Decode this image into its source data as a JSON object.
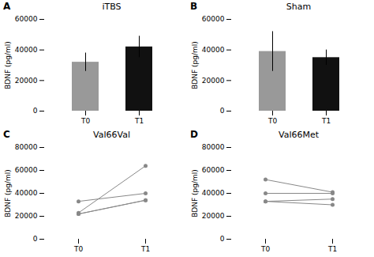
{
  "chart_data": [
    {
      "type": "bar",
      "title": "iTBS",
      "annotations": [
        "A"
      ],
      "categories": [
        "T0",
        "T1"
      ],
      "values": [
        32000,
        42000
      ],
      "errors": [
        6000,
        7000
      ],
      "colors": [
        "#999999",
        "#111111"
      ],
      "ylim": [
        0,
        60000
      ],
      "yticks": [
        0,
        20000,
        40000,
        60000
      ],
      "ylabel": "BDNF (pg/ml)"
    },
    {
      "type": "bar",
      "title": "Sham",
      "annotations": [
        "B"
      ],
      "categories": [
        "T0",
        "T1"
      ],
      "values": [
        39000,
        35000
      ],
      "errors": [
        13000,
        5000
      ],
      "colors": [
        "#999999",
        "#111111"
      ],
      "ylim": [
        0,
        60000
      ],
      "yticks": [
        0,
        20000,
        40000,
        60000
      ],
      "ylabel": "BDNF (pg/ml)"
    },
    {
      "type": "line",
      "title": "Val66Val",
      "annotations": [
        "C"
      ],
      "categories": [
        "T0",
        "T1"
      ],
      "series": [
        {
          "color": "#888888",
          "marker": "o",
          "values": [
            33000,
            40000
          ]
        },
        {
          "color": "#888888",
          "marker": "o",
          "values": [
            23000,
            64000
          ]
        },
        {
          "color": "#888888",
          "marker": "o",
          "values": [
            22000,
            34000
          ]
        },
        {
          "color": "#888888",
          "marker": "o",
          "values": [
            22000,
            34000
          ]
        }
      ],
      "ylim": [
        0,
        80000
      ],
      "yticks": [
        0,
        20000,
        40000,
        60000,
        80000
      ],
      "ylabel": "BDNF (pg/ml)"
    },
    {
      "type": "line",
      "title": "Val66Met",
      "annotations": [
        "D"
      ],
      "categories": [
        "T0",
        "T1"
      ],
      "series": [
        {
          "color": "#888888",
          "marker": "o",
          "values": [
            52000,
            41000
          ]
        },
        {
          "color": "#888888",
          "marker": "o",
          "values": [
            40000,
            40000
          ]
        },
        {
          "color": "#888888",
          "marker": "o",
          "values": [
            33000,
            35000
          ]
        },
        {
          "color": "#888888",
          "marker": "o",
          "values": [
            33000,
            30000
          ]
        }
      ],
      "ylim": [
        0,
        80000
      ],
      "yticks": [
        0,
        20000,
        40000,
        60000,
        80000
      ],
      "ylabel": "BDNF (pg/ml)"
    }
  ]
}
